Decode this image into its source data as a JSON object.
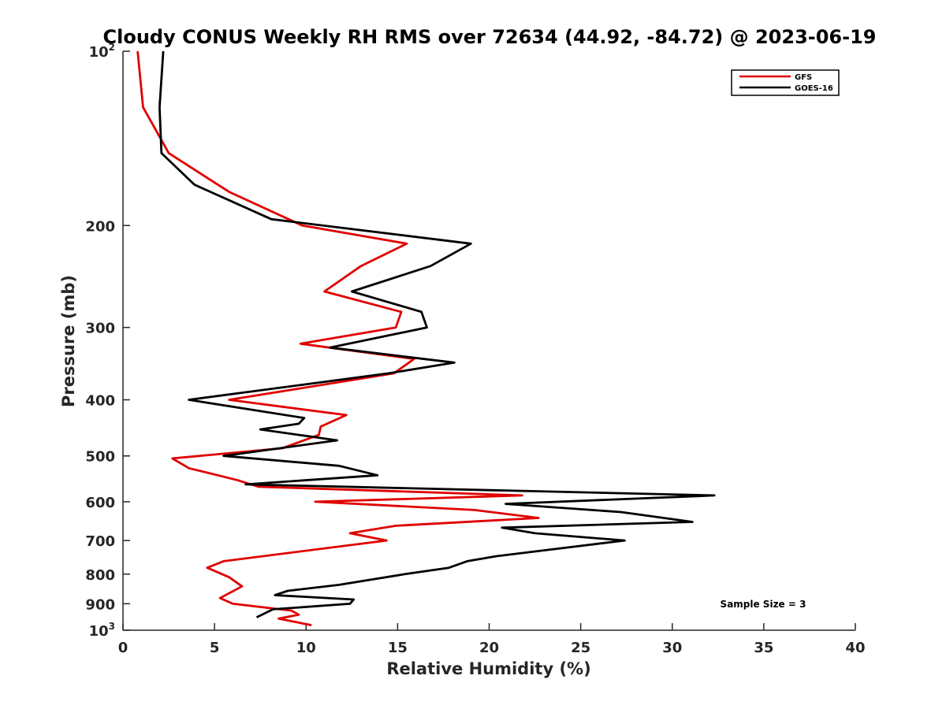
{
  "chart_data": {
    "type": "line",
    "title": "Cloudy CONUS Weekly RH RMS over 72634 (44.92, -84.72) @ 2023-06-19",
    "xlabel": "Relative Humidity (%)",
    "ylabel": "Pressure (mb)",
    "xlim": [
      0,
      40
    ],
    "ylim": [
      100,
      1000
    ],
    "y_scale": "log",
    "y_reversed": true,
    "grid": false,
    "legend_position": "top-right",
    "x_ticks": [
      "0",
      "5",
      "10",
      "15",
      "20",
      "25",
      "30",
      "35",
      "40"
    ],
    "y_ticks": [
      {
        "value": 100,
        "base": "10",
        "exp": "2"
      },
      {
        "value": 200,
        "label": "200"
      },
      {
        "value": 300,
        "label": "300"
      },
      {
        "value": 400,
        "label": "400"
      },
      {
        "value": 500,
        "label": "500"
      },
      {
        "value": 600,
        "label": "600"
      },
      {
        "value": 700,
        "label": "700"
      },
      {
        "value": 800,
        "label": "800"
      },
      {
        "value": 900,
        "label": "900"
      },
      {
        "value": 1000,
        "base": "10",
        "exp": "3"
      }
    ],
    "series": [
      {
        "name": "GFS",
        "color": "#e00000",
        "points": [
          [
            0.8,
            100
          ],
          [
            1.1,
            125
          ],
          [
            2.5,
            150
          ],
          [
            5.8,
            175
          ],
          [
            9.8,
            200
          ],
          [
            15.5,
            215
          ],
          [
            13.0,
            235
          ],
          [
            11.0,
            260
          ],
          [
            15.2,
            282
          ],
          [
            14.9,
            300
          ],
          [
            9.7,
            320
          ],
          [
            15.9,
            340
          ],
          [
            14.8,
            360
          ],
          [
            5.8,
            400
          ],
          [
            12.2,
            425
          ],
          [
            10.8,
            445
          ],
          [
            10.7,
            460
          ],
          [
            8.7,
            485
          ],
          [
            2.7,
            505
          ],
          [
            3.6,
            525
          ],
          [
            6.2,
            550
          ],
          [
            7.4,
            565
          ],
          [
            21.8,
            585
          ],
          [
            10.5,
            600
          ],
          [
            19.2,
            620
          ],
          [
            22.7,
            640
          ],
          [
            14.9,
            660
          ],
          [
            12.4,
            680
          ],
          [
            14.4,
            700
          ],
          [
            5.5,
            760
          ],
          [
            4.6,
            780
          ],
          [
            5.8,
            810
          ],
          [
            6.5,
            840
          ],
          [
            5.3,
            880
          ],
          [
            6.0,
            900
          ],
          [
            9.2,
            925
          ],
          [
            9.6,
            940
          ],
          [
            8.5,
            955
          ],
          [
            10.3,
            980
          ]
        ]
      },
      {
        "name": "GOES-16",
        "color": "#000000",
        "points": [
          [
            2.2,
            100
          ],
          [
            2.0,
            125
          ],
          [
            2.1,
            150
          ],
          [
            3.9,
            170
          ],
          [
            8.1,
            195
          ],
          [
            19.0,
            215
          ],
          [
            16.8,
            235
          ],
          [
            12.5,
            260
          ],
          [
            16.3,
            282
          ],
          [
            16.6,
            300
          ],
          [
            11.3,
            325
          ],
          [
            18.1,
            345
          ],
          [
            14.5,
            360
          ],
          [
            10.3,
            375
          ],
          [
            3.6,
            400
          ],
          [
            9.9,
            430
          ],
          [
            9.6,
            440
          ],
          [
            7.5,
            450
          ],
          [
            11.7,
            470
          ],
          [
            5.5,
            500
          ],
          [
            11.8,
            520
          ],
          [
            13.9,
            540
          ],
          [
            6.7,
            560
          ],
          [
            32.3,
            585
          ],
          [
            20.9,
            605
          ],
          [
            27.2,
            625
          ],
          [
            31.1,
            650
          ],
          [
            20.7,
            665
          ],
          [
            22.5,
            680
          ],
          [
            27.4,
            700
          ],
          [
            20.4,
            745
          ],
          [
            18.8,
            760
          ],
          [
            17.8,
            780
          ],
          [
            15.4,
            800
          ],
          [
            11.8,
            835
          ],
          [
            9.0,
            855
          ],
          [
            8.3,
            870
          ],
          [
            12.6,
            885
          ],
          [
            12.4,
            900
          ],
          [
            8.2,
            920
          ],
          [
            7.3,
            950
          ]
        ]
      }
    ],
    "annotations": [
      "Sample Size = 3"
    ]
  }
}
